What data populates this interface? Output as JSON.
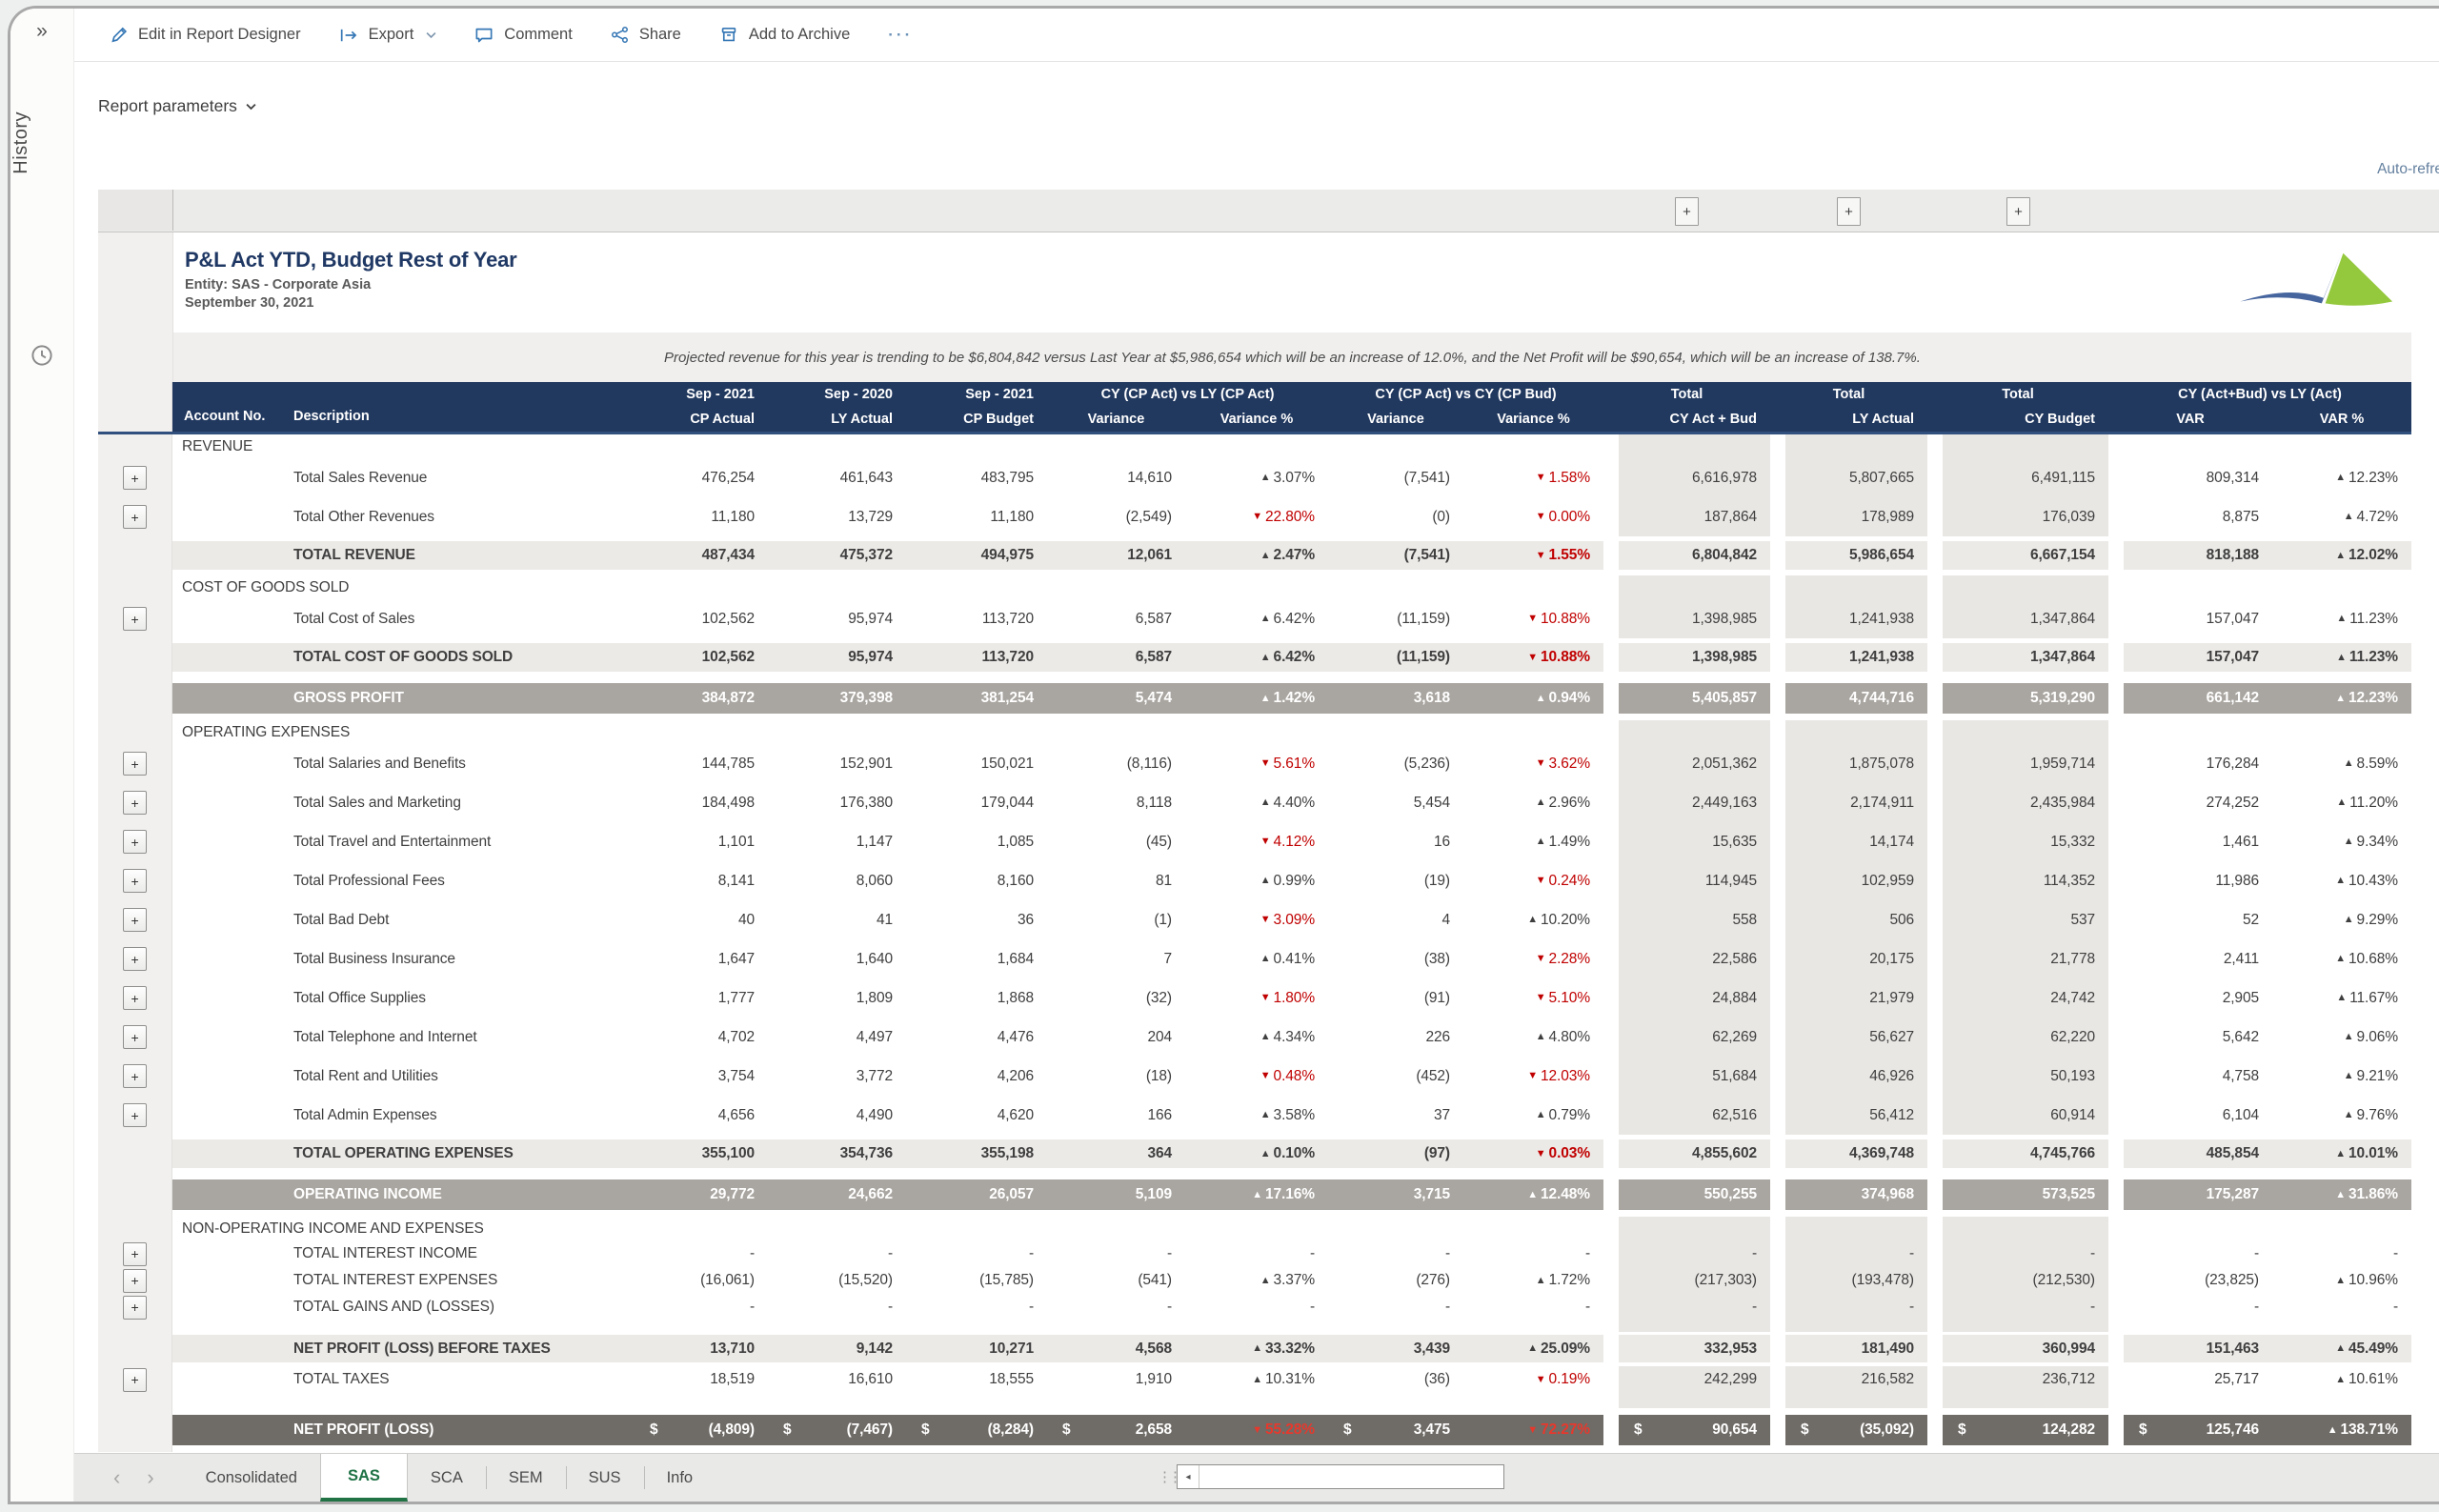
{
  "side_rail": {
    "collapse_icon": "»",
    "history_label": "History"
  },
  "toolbar": {
    "items": [
      {
        "icon": "pencil-icon",
        "label": "Edit in Report Designer",
        "chevron": false
      },
      {
        "icon": "export-icon",
        "label": "Export",
        "chevron": true
      },
      {
        "icon": "comment-icon",
        "label": "Comment",
        "chevron": false
      },
      {
        "icon": "share-icon",
        "label": "Share",
        "chevron": false
      },
      {
        "icon": "archive-icon",
        "label": "Add to Archive",
        "chevron": false
      }
    ],
    "more_label": "···"
  },
  "params": {
    "label": "Report parameters"
  },
  "auto_refresh_label": "Auto-refre",
  "report": {
    "title": "P&L Act YTD, Budget Rest of Year",
    "entity": "Entity: SAS - Corporate Asia",
    "date": "September 30, 2021",
    "note": "Projected revenue for this year is trending to be $6,804,842 versus Last Year at $5,986,654 which will be  an increase of 12.0%, and the Net Profit will be $90,654, which will be an increase of 138.7%.",
    "logo_colors": {
      "blue": "#46659f",
      "green": "#94c83d"
    }
  },
  "table": {
    "colors": {
      "header_bg": "#22395f",
      "band": "#a9a5a0",
      "band_dark": "#6f6b66",
      "shade": "#e9e7e4",
      "subtotal": "#eceae7",
      "negative": "#c00000",
      "tab_green": "#217346"
    },
    "header": {
      "account": "Account No.",
      "description": "Description",
      "measures": [
        {
          "top": "Sep - 2021",
          "bottom": "CP Actual"
        },
        {
          "top": "Sep - 2020",
          "bottom": "LY Actual"
        },
        {
          "top": "Sep - 2021",
          "bottom": "CP Budget"
        }
      ],
      "group1": {
        "top": "CY (CP Act) vs LY (CP Act)",
        "cols": [
          "Variance",
          "Variance %"
        ]
      },
      "group2": {
        "top": "CY (CP Act) vs CY (CP Bud)",
        "cols": [
          "Variance",
          "Variance %"
        ]
      },
      "totals": [
        {
          "top": "Total",
          "bottom": "CY Act + Bud"
        },
        {
          "top": "Total",
          "bottom": "LY Actual"
        },
        {
          "top": "Total",
          "bottom": "CY Budget"
        }
      ],
      "group3": {
        "top": "CY (Act+Bud) vs LY (Act)",
        "cols": [
          "VAR",
          "VAR %"
        ]
      }
    },
    "rows": [
      {
        "type": "section",
        "label": "REVENUE"
      },
      {
        "type": "data",
        "expand": true,
        "label": "Total Sales Revenue",
        "v": [
          "476,254",
          "461,643",
          "483,795",
          "14,610",
          "▲3.07%",
          "(7,541)",
          "▼1.58%",
          "6,616,978",
          "5,807,665",
          "6,491,115",
          "809,314",
          "▲12.23%"
        ]
      },
      {
        "type": "data",
        "expand": true,
        "label": "Total Other Revenues",
        "v": [
          "11,180",
          "13,729",
          "11,180",
          "(2,549)",
          "▼22.80%",
          "(0)",
          "▼0.00%",
          "187,864",
          "178,989",
          "176,039",
          "8,875",
          "▲4.72%"
        ]
      },
      {
        "type": "subtotal",
        "label": "TOTAL REVENUE",
        "v": [
          "487,434",
          "475,372",
          "494,975",
          "12,061",
          "▲2.47%",
          "(7,541)",
          "▼1.55%",
          "6,804,842",
          "5,986,654",
          "6,667,154",
          "818,188",
          "▲12.02%"
        ]
      },
      {
        "type": "section",
        "label": "COST OF GOODS SOLD"
      },
      {
        "type": "data",
        "expand": true,
        "label": "Total Cost of Sales",
        "v": [
          "102,562",
          "95,974",
          "113,720",
          "6,587",
          "▲6.42%",
          "(11,159)",
          "▼10.88%",
          "1,398,985",
          "1,241,938",
          "1,347,864",
          "157,047",
          "▲11.23%"
        ]
      },
      {
        "type": "subtotal",
        "label": "TOTAL COST OF GOODS SOLD",
        "v": [
          "102,562",
          "95,974",
          "113,720",
          "6,587",
          "▲6.42%",
          "(11,159)",
          "▼10.88%",
          "1,398,985",
          "1,241,938",
          "1,347,864",
          "157,047",
          "▲11.23%"
        ]
      },
      {
        "type": "band",
        "label": "GROSS PROFIT",
        "v": [
          "384,872",
          "379,398",
          "381,254",
          "5,474",
          "▲1.42%",
          "3,618",
          "▲0.94%",
          "5,405,857",
          "4,744,716",
          "5,319,290",
          "661,142",
          "▲12.23%"
        ]
      },
      {
        "type": "section",
        "label": "OPERATING EXPENSES"
      },
      {
        "type": "data",
        "expand": true,
        "label": "Total Salaries and Benefits",
        "v": [
          "144,785",
          "152,901",
          "150,021",
          "(8,116)",
          "▼5.61%",
          "(5,236)",
          "▼3.62%",
          "2,051,362",
          "1,875,078",
          "1,959,714",
          "176,284",
          "▲8.59%"
        ]
      },
      {
        "type": "data",
        "expand": true,
        "label": "Total Sales and Marketing",
        "v": [
          "184,498",
          "176,380",
          "179,044",
          "8,118",
          "▲4.40%",
          "5,454",
          "▲2.96%",
          "2,449,163",
          "2,174,911",
          "2,435,984",
          "274,252",
          "▲11.20%"
        ]
      },
      {
        "type": "data",
        "expand": true,
        "label": "Total Travel and Entertainment",
        "v": [
          "1,101",
          "1,147",
          "1,085",
          "(45)",
          "▼4.12%",
          "16",
          "▲1.49%",
          "15,635",
          "14,174",
          "15,332",
          "1,461",
          "▲9.34%"
        ]
      },
      {
        "type": "data",
        "expand": true,
        "label": "Total Professional Fees",
        "v": [
          "8,141",
          "8,060",
          "8,160",
          "81",
          "▲0.99%",
          "(19)",
          "▼0.24%",
          "114,945",
          "102,959",
          "114,352",
          "11,986",
          "▲10.43%"
        ]
      },
      {
        "type": "data",
        "expand": true,
        "label": "Total Bad Debt",
        "v": [
          "40",
          "41",
          "36",
          "(1)",
          "▼3.09%",
          "4",
          "▲10.20%",
          "558",
          "506",
          "537",
          "52",
          "▲9.29%"
        ]
      },
      {
        "type": "data",
        "expand": true,
        "label": "Total Business Insurance",
        "v": [
          "1,647",
          "1,640",
          "1,684",
          "7",
          "▲0.41%",
          "(38)",
          "▼2.28%",
          "22,586",
          "20,175",
          "21,778",
          "2,411",
          "▲10.68%"
        ]
      },
      {
        "type": "data",
        "expand": true,
        "label": "Total Office Supplies",
        "v": [
          "1,777",
          "1,809",
          "1,868",
          "(32)",
          "▼1.80%",
          "(91)",
          "▼5.10%",
          "24,884",
          "21,979",
          "24,742",
          "2,905",
          "▲11.67%"
        ]
      },
      {
        "type": "data",
        "expand": true,
        "label": "Total Telephone and Internet",
        "v": [
          "4,702",
          "4,497",
          "4,476",
          "204",
          "▲4.34%",
          "226",
          "▲4.80%",
          "62,269",
          "56,627",
          "62,220",
          "5,642",
          "▲9.06%"
        ]
      },
      {
        "type": "data",
        "expand": true,
        "label": "Total Rent and Utilities",
        "v": [
          "3,754",
          "3,772",
          "4,206",
          "(18)",
          "▼0.48%",
          "(452)",
          "▼12.03%",
          "51,684",
          "46,926",
          "50,193",
          "4,758",
          "▲9.21%"
        ]
      },
      {
        "type": "data",
        "expand": true,
        "label": "Total Admin Expenses",
        "v": [
          "4,656",
          "4,490",
          "4,620",
          "166",
          "▲3.58%",
          "37",
          "▲0.79%",
          "62,516",
          "56,412",
          "60,914",
          "6,104",
          "▲9.76%"
        ]
      },
      {
        "type": "subtotal",
        "label": "TOTAL OPERATING EXPENSES",
        "v": [
          "355,100",
          "354,736",
          "355,198",
          "364",
          "▲0.10%",
          "(97)",
          "▼0.03%",
          "4,855,602",
          "4,369,748",
          "4,745,766",
          "485,854",
          "▲10.01%"
        ]
      },
      {
        "type": "band",
        "label": "OPERATING INCOME",
        "v": [
          "29,772",
          "24,662",
          "26,057",
          "5,109",
          "▲17.16%",
          "3,715",
          "▲12.48%",
          "550,255",
          "374,968",
          "573,525",
          "175,287",
          "▲31.86%"
        ]
      },
      {
        "type": "section",
        "label": "NON-OPERATING INCOME AND EXPENSES"
      },
      {
        "type": "compact",
        "expand": true,
        "label": "TOTAL INTEREST INCOME",
        "v": [
          "-",
          "-",
          "-",
          "-",
          "-",
          "-",
          "-",
          "-",
          "-",
          "-",
          "-",
          "-"
        ]
      },
      {
        "type": "compact",
        "expand": true,
        "label": "TOTAL INTEREST EXPENSES",
        "v": [
          "(16,061)",
          "(15,520)",
          "(15,785)",
          "(541)",
          "▲3.37%",
          "(276)",
          "▲1.72%",
          "(217,303)",
          "(193,478)",
          "(212,530)",
          "(23,825)",
          "▲10.96%"
        ]
      },
      {
        "type": "compact",
        "expand": true,
        "label": "TOTAL GAINS AND (LOSSES)",
        "v": [
          "-",
          "-",
          "-",
          "-",
          "-",
          "-",
          "-",
          "-",
          "-",
          "-",
          "-",
          "-"
        ]
      },
      {
        "type": "spacer",
        "h": 12
      },
      {
        "type": "subtotal-compact",
        "label": "NET PROFIT (LOSS) BEFORE TAXES",
        "v": [
          "13,710",
          "9,142",
          "10,271",
          "4,568",
          "▲33.32%",
          "3,439",
          "▲25.09%",
          "332,953",
          "181,490",
          "360,994",
          "151,463",
          "▲45.49%"
        ]
      },
      {
        "type": "compact",
        "expand": true,
        "label": "TOTAL TAXES",
        "v": [
          "18,519",
          "16,610",
          "18,555",
          "1,910",
          "▲10.31%",
          "(36)",
          "▼0.19%",
          "242,299",
          "216,582",
          "236,712",
          "25,717",
          "▲10.61%"
        ]
      },
      {
        "type": "spacer",
        "h": 16
      },
      {
        "type": "band-dark",
        "currency": true,
        "label": "NET PROFIT (LOSS)",
        "v": [
          "(4,809)",
          "(7,467)",
          "(8,284)",
          "2,658",
          "▼55.28%",
          "3,475",
          "▼72.27%",
          "90,654",
          "(35,092)",
          "124,282",
          "125,746",
          "▲138.71%"
        ]
      }
    ]
  },
  "tabs": {
    "nav_prev": "‹",
    "nav_next": "›",
    "items": [
      "Consolidated",
      "SAS",
      "SCA",
      "SEM",
      "SUS",
      "Info"
    ],
    "active": "SAS",
    "scroll_arrow": "◂"
  }
}
